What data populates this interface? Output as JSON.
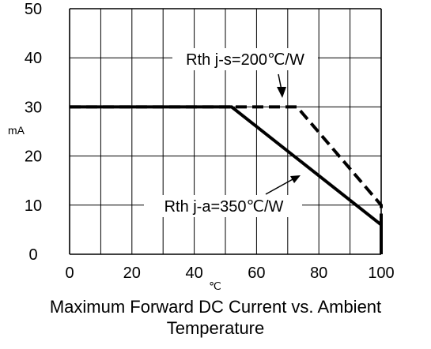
{
  "chart_data": {
    "type": "line",
    "title": "Maximum Forward DC Current vs. Ambient Temperature",
    "xlabel": "℃",
    "ylabel": "mA",
    "xlim": [
      0,
      100
    ],
    "ylim": [
      0,
      50
    ],
    "x_ticks": [
      0,
      20,
      40,
      60,
      80,
      100
    ],
    "y_ticks": [
      0,
      10,
      20,
      30,
      40,
      50
    ],
    "grid": true,
    "series": [
      {
        "name": "Rth j-s=200℃/W",
        "style": "dashed",
        "x": [
          0,
          73,
          100,
          100
        ],
        "y": [
          30,
          30,
          10,
          0
        ]
      },
      {
        "name": "Rth j-a=350℃/W",
        "style": "solid",
        "x": [
          0,
          52,
          100,
          100
        ],
        "y": [
          30,
          30,
          6,
          0
        ]
      }
    ]
  },
  "caption": {
    "line1": "Maximum Forward DC Current vs. Ambient",
    "line2": "Temperature"
  }
}
